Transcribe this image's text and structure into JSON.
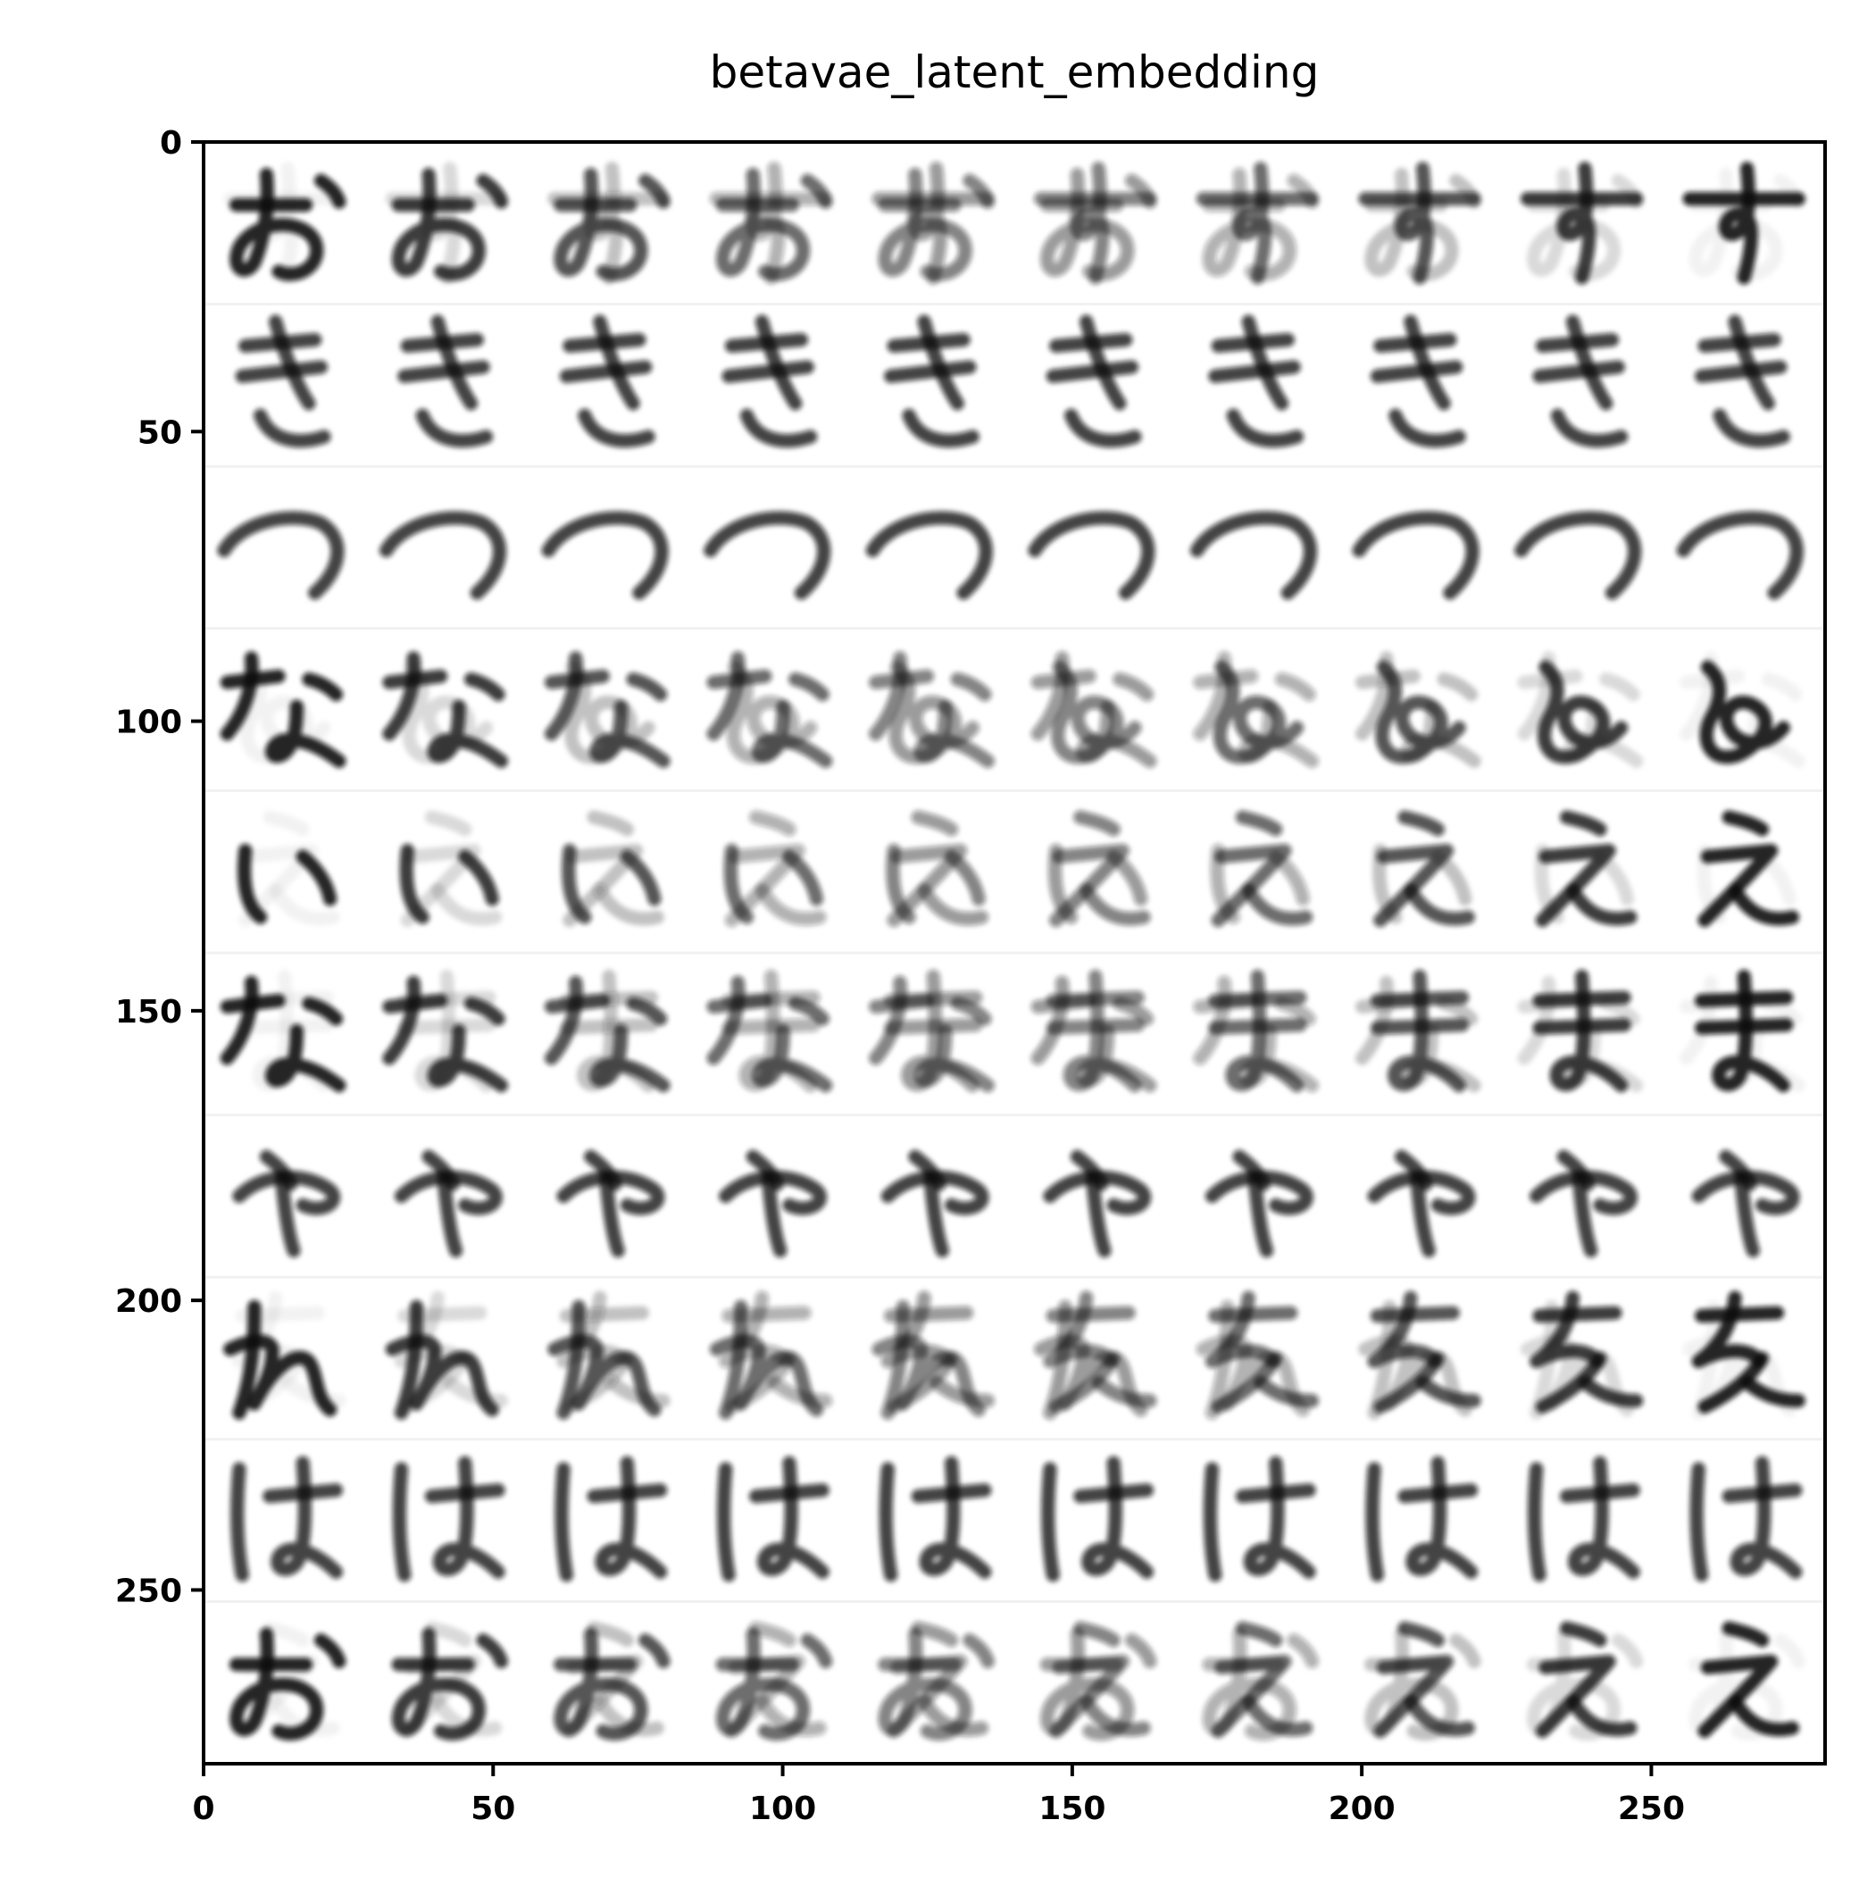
{
  "chart_data": {
    "type": "heatmap",
    "title": "betavae_latent_embedding",
    "xlabel": "",
    "ylabel": "",
    "xlim": [
      0,
      280
    ],
    "ylim": [
      280,
      0
    ],
    "x_ticks": [
      0,
      50,
      100,
      150,
      200,
      250
    ],
    "y_ticks": [
      0,
      50,
      100,
      150,
      200,
      250
    ],
    "x_tick_labels": [
      "0",
      "50",
      "100",
      "150",
      "200",
      "250"
    ],
    "y_tick_labels": [
      "0",
      "50",
      "100",
      "150",
      "200",
      "250"
    ],
    "colormap": "gray_r",
    "grid": false,
    "legend": "none",
    "image_content": "10 x 10 grid of decoded 28x28 handwritten hiragana characters; each row is a latent traversal interpolating between two characters",
    "grid_rows": 10,
    "grid_cols": 10,
    "cell_size": 28,
    "row_characters": [
      [
        "お",
        "す"
      ],
      [
        "き",
        "き"
      ],
      [
        "つ",
        "つ"
      ],
      [
        "な",
        "ゐ"
      ],
      [
        "ぃ",
        "え"
      ],
      [
        "な",
        "ま"
      ],
      [
        "や",
        "や"
      ],
      [
        "れ",
        "を"
      ],
      [
        "は",
        "は"
      ],
      [
        "お",
        "え"
      ]
    ]
  }
}
